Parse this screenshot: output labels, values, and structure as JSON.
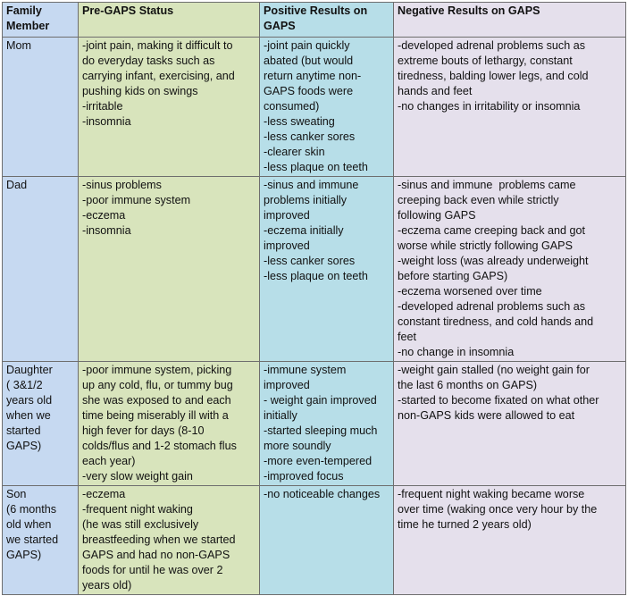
{
  "headers": [
    [
      "Family",
      "Member"
    ],
    [
      "Pre-GAPS Status"
    ],
    [
      "Positive Results on",
      "GAPS"
    ],
    [
      "Negative Results on GAPS"
    ]
  ],
  "rows": [
    {
      "member": [
        "Mom"
      ],
      "pre": [
        "-joint pain, making it difficult to",
        "do everyday tasks such as",
        "carrying infant, exercising, and",
        "pushing kids on swings",
        "-irritable",
        "-insomnia"
      ],
      "pos": [
        "-joint pain quickly",
        "abated (but would",
        "return anytime non-",
        "GAPS foods were",
        "consumed)",
        "-less sweating",
        "-less canker sores",
        "-clearer skin",
        "-less plaque on teeth"
      ],
      "neg": [
        "-developed adrenal problems such as",
        "extreme bouts of lethargy, constant",
        "tiredness, balding lower legs, and cold",
        "hands and feet",
        "-no changes in irritability or insomnia"
      ]
    },
    {
      "member": [
        "Dad"
      ],
      "pre": [
        "-sinus problems",
        "-poor immune system",
        "-eczema",
        "-insomnia"
      ],
      "pos": [
        "-sinus and immune",
        "problems initially",
        "improved",
        "-eczema initially",
        "improved",
        "-less canker sores",
        "-less plaque on teeth"
      ],
      "neg": [
        "-sinus and immune  problems came",
        "creeping back even while strictly",
        "following GAPS",
        "-eczema came creeping back and got",
        "worse while strictly following GAPS",
        "-weight loss (was already underweight",
        "before starting GAPS)",
        "-eczema worsened over time",
        "-developed adrenal problems such as",
        "constant tiredness, and cold hands and",
        "feet",
        "-no change in insomnia"
      ]
    },
    {
      "member": [
        "Daughter",
        "( 3&1/2",
        "years old",
        "when we",
        "started",
        "GAPS)"
      ],
      "pre": [
        "-poor immune system, picking",
        "up any cold, flu, or tummy bug",
        "she was exposed to and each",
        "time being miserably ill with a",
        "high fever for days (8-10",
        "colds/flus and 1-2 stomach flus",
        "each year)",
        "-very slow weight gain"
      ],
      "pos": [
        "-immune system",
        "improved",
        "- weight gain improved",
        "initially",
        "-started sleeping much",
        "more soundly",
        "-more even-tempered",
        "-improved focus"
      ],
      "neg": [
        "-weight gain stalled (no weight gain for",
        "the last 6 months on GAPS)",
        "-started to become fixated on what other",
        "non-GAPS kids were allowed to eat"
      ]
    },
    {
      "member": [
        "Son",
        "(6 months",
        "old when",
        "we started",
        "GAPS)"
      ],
      "pre": [
        "-eczema",
        "-frequent night waking",
        "(he was still exclusively",
        "breastfeeding when we started",
        "GAPS and had no non-GAPS",
        "foods for until he was over 2",
        "years old)"
      ],
      "pos": [
        "-no noticeable changes"
      ],
      "neg": [
        "-frequent night waking became worse",
        "over time (waking once very hour by the",
        "time he turned 2 years old)"
      ]
    }
  ]
}
